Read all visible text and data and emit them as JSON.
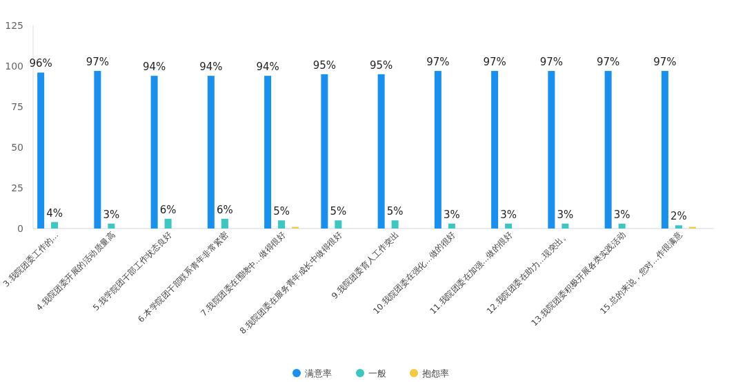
{
  "chart_data": {
    "type": "bar",
    "categories": [
      "3.我院团委工作的...",
      "4.我院团委开展的活动质量高",
      "5.我学院团干部工作状态良好",
      "6.本学院团干部联系青年非常紧密",
      "7.我院团委在围绕中...做得很好",
      "8.我院团委在服务青年成长中做得很好",
      "9.我院团委育人工作突出",
      "10.我院团委在强化...做的很好",
      "11.我院团委在加强...做的很好",
      "12.我院团委在助力...现突出。",
      "13.我院团委积极开展各类实践活动",
      "15.总的来说，您对...作很满意"
    ],
    "series": [
      {
        "name": "满意率",
        "color": "#1890f0",
        "values": [
          96,
          97,
          94,
          94,
          94,
          95,
          95,
          97,
          97,
          97,
          97,
          97
        ],
        "value_labels": [
          "96%",
          "97%",
          "94%",
          "94%",
          "94%",
          "95%",
          "95%",
          "97%",
          "97%",
          "97%",
          "97%",
          "97%"
        ]
      },
      {
        "name": "一般",
        "color": "#3cc8c0",
        "values": [
          4,
          3,
          6,
          6,
          5,
          5,
          5,
          3,
          3,
          3,
          3,
          2
        ],
        "value_labels": [
          "4%",
          "3%",
          "6%",
          "6%",
          "5%",
          "5%",
          "5%",
          "3%",
          "3%",
          "3%",
          "3%",
          "2%"
        ]
      },
      {
        "name": "抱怨率",
        "color": "#f5c842",
        "values": [
          0,
          0,
          0,
          0,
          1,
          0,
          0,
          0,
          0,
          0,
          0,
          1
        ]
      }
    ],
    "ylim": [
      0,
      125
    ],
    "yticks": [
      0,
      25,
      50,
      75,
      100,
      125
    ],
    "grid": false,
    "legend": "bottom"
  }
}
